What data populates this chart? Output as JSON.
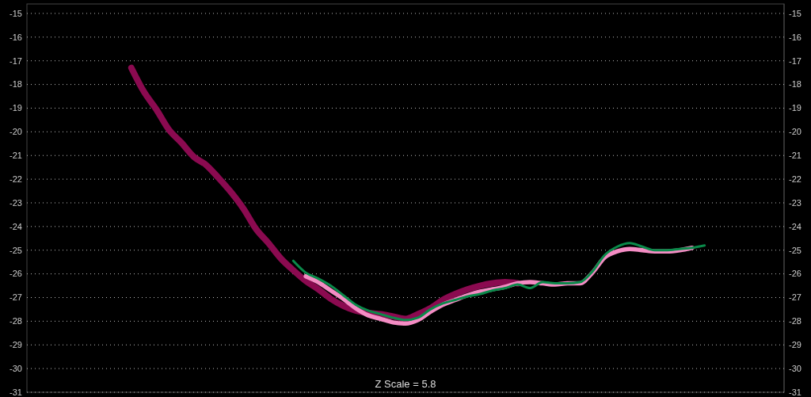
{
  "chart_data": {
    "type": "line",
    "categories": [
      null,
      null,
      null,
      null,
      null,
      null,
      null,
      null,
      null,
      null,
      null,
      null,
      null,
      null,
      null,
      null,
      null,
      null,
      null,
      null,
      null,
      null,
      null,
      null,
      null,
      null,
      null,
      null,
      null,
      null,
      null,
      null,
      null,
      null,
      null,
      null,
      null,
      null,
      null,
      null,
      null,
      null,
      null,
      null,
      null,
      null,
      null,
      null,
      null,
      null,
      null,
      null,
      null,
      null,
      null,
      null,
      null,
      null,
      null,
      null,
      null
    ],
    "series": [
      {
        "color": "#8b0a50",
        "values": [
          null,
          null,
          null,
          null,
          null,
          null,
          null,
          null,
          -17.3,
          -18.3,
          -19.05,
          -19.9,
          -20.45,
          -21.05,
          -21.4,
          -21.95,
          -22.55,
          -23.25,
          -24.1,
          -24.7,
          -25.35,
          -25.85,
          -26.3,
          -26.65,
          -27.05,
          -27.35,
          -27.55,
          -27.65,
          -27.7,
          -27.8,
          -27.9,
          -27.7,
          -27.45,
          -27.1,
          -26.85,
          -26.65,
          -26.5,
          -26.4,
          -26.35,
          -26.4,
          null,
          null,
          null,
          null,
          null,
          null,
          null,
          null,
          null,
          null,
          null,
          null,
          null,
          null,
          null,
          null,
          null,
          null,
          null,
          null,
          null
        ]
      },
      {
        "color": "#f48cc4",
        "values": [
          null,
          null,
          null,
          null,
          null,
          null,
          null,
          null,
          null,
          null,
          null,
          null,
          null,
          null,
          null,
          null,
          null,
          null,
          null,
          null,
          null,
          null,
          -26.1,
          -26.35,
          -26.7,
          -27.05,
          -27.45,
          -27.75,
          -27.9,
          -28.05,
          -28.1,
          -27.95,
          -27.6,
          -27.3,
          -27.1,
          -26.9,
          -26.75,
          -26.65,
          -26.55,
          -26.4,
          -26.35,
          -26.4,
          -26.45,
          -26.4,
          -26.4,
          -25.95,
          -25.3,
          -25.05,
          -24.95,
          -25.0,
          -25.05,
          -25.05,
          -25.0,
          -24.9,
          null,
          null,
          null,
          null,
          null,
          null,
          null
        ]
      },
      {
        "color": "#0a8a4a",
        "values": [
          null,
          null,
          null,
          null,
          null,
          null,
          null,
          null,
          null,
          null,
          null,
          null,
          null,
          null,
          null,
          null,
          null,
          null,
          null,
          null,
          null,
          -25.45,
          -25.95,
          -26.2,
          -26.5,
          -26.9,
          -27.3,
          -27.55,
          -27.7,
          -27.85,
          -27.95,
          -27.85,
          -27.5,
          -27.25,
          -27.1,
          -26.95,
          -26.85,
          -26.7,
          -26.6,
          -26.45,
          -26.6,
          -26.35,
          -26.4,
          -26.4,
          -26.35,
          -25.9,
          -25.2,
          -24.85,
          -24.7,
          -24.85,
          -25.0,
          -25.0,
          -24.95,
          -24.9,
          -24.8,
          null,
          null,
          null,
          null,
          null,
          null
        ]
      }
    ],
    "ylim": [
      -31,
      -14.6
    ],
    "yticks": [
      -15,
      -16,
      -17,
      -18,
      -19,
      -20,
      -21,
      -22,
      -23,
      -24,
      -25,
      -26,
      -27,
      -28,
      -29,
      -30,
      -31
    ],
    "y2lim": [
      -31,
      -14.6
    ],
    "y2ticks": [
      -15,
      -16,
      -17,
      -18,
      -19,
      -20,
      -21,
      -22,
      -23,
      -24,
      -25,
      -26,
      -27,
      -28,
      -29,
      -30,
      -31
    ],
    "tick_labels": "y",
    "grid": "y",
    "line_style": "solid",
    "annotations": [
      "Z Scale = 5.8"
    ]
  }
}
